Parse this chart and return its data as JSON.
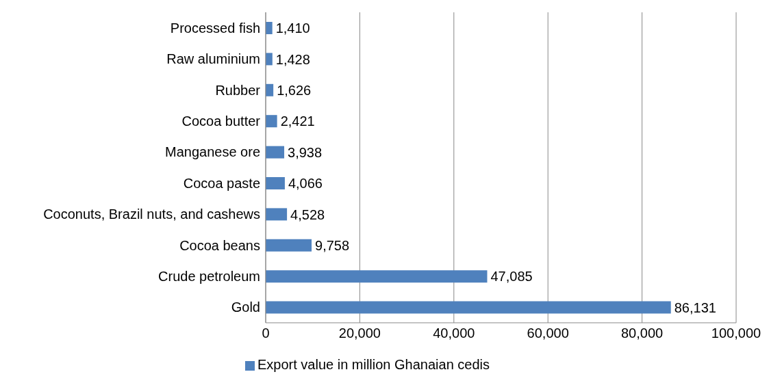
{
  "chart_data": {
    "type": "bar",
    "orientation": "horizontal",
    "categories": [
      "Processed fish",
      "Raw aluminium",
      "Rubber",
      "Cocoa butter",
      "Manganese ore",
      "Cocoa paste",
      "Coconuts, Brazil nuts, and cashews",
      "Cocoa beans",
      "Crude petroleum",
      "Gold"
    ],
    "series": [
      {
        "name": "Export value in million Ghanaian cedis",
        "color": "#4f81bd",
        "values": [
          1410,
          1428,
          1626,
          2421,
          3938,
          4066,
          4528,
          9758,
          47085,
          86131
        ],
        "value_labels": [
          "1,410",
          "1,428",
          "1,626",
          "2,421",
          "3,938",
          "4,066",
          "4,528",
          "9,758",
          "47,085",
          "86,131"
        ]
      }
    ],
    "xlim": [
      0,
      100000
    ],
    "xticks": [
      0,
      {
        "value": 20000,
        "label": "20,000"
      },
      {
        "value": 40000,
        "label": "40,000"
      },
      {
        "value": 60000,
        "label": "60,000"
      },
      {
        "value": 80000,
        "label": "80,000"
      },
      {
        "value": 100000,
        "label": "100,000"
      }
    ],
    "grid": "x",
    "legend": "bottom"
  }
}
